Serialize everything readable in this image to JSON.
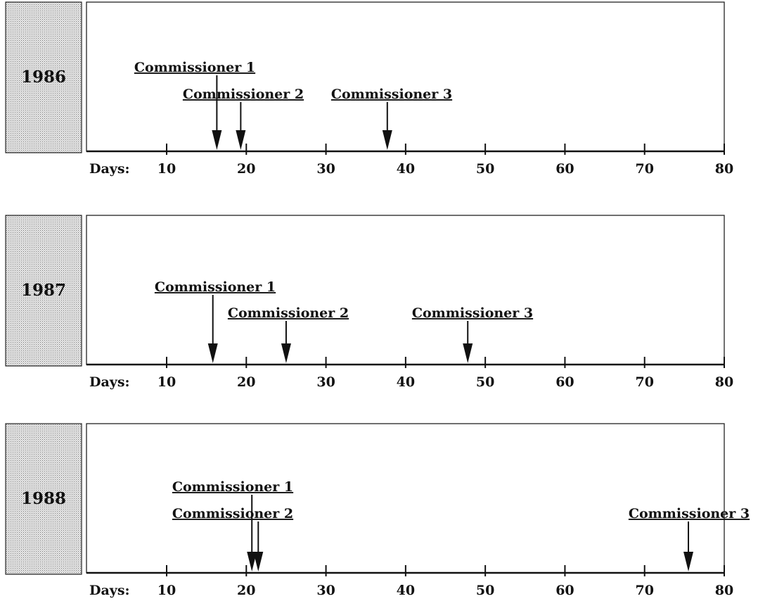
{
  "chart_data": [
    {
      "type": "timeline",
      "year_label": "1986",
      "axis_label": "Days:",
      "xlim": [
        0,
        80
      ],
      "ticks": [
        10,
        20,
        30,
        40,
        50,
        60,
        70,
        80
      ],
      "tick_labels": [
        "10",
        "20",
        "30",
        "40",
        "50",
        "60",
        "70",
        "80"
      ],
      "markers": [
        {
          "label": "Commissioner 1",
          "day": 16.3
        },
        {
          "label": "Commissioner 2",
          "day": 19.3
        },
        {
          "label": "Commissioner 3",
          "day": 37.7
        }
      ]
    },
    {
      "type": "timeline",
      "year_label": "1987",
      "axis_label": "Days:",
      "xlim": [
        0,
        80
      ],
      "ticks": [
        10,
        20,
        30,
        40,
        50,
        60,
        70,
        80
      ],
      "tick_labels": [
        "10",
        "20",
        "30",
        "40",
        "50",
        "60",
        "70",
        "80"
      ],
      "markers": [
        {
          "label": "Commissioner 1",
          "day": 15.8
        },
        {
          "label": "Commissioner 2",
          "day": 25.0
        },
        {
          "label": "Commissioner 3",
          "day": 47.8
        }
      ]
    },
    {
      "type": "timeline",
      "year_label": "1988",
      "axis_label": "Days:",
      "xlim": [
        0,
        80
      ],
      "ticks": [
        10,
        20,
        30,
        40,
        50,
        60,
        70,
        80
      ],
      "tick_labels": [
        "10",
        "20",
        "30",
        "40",
        "50",
        "60",
        "70",
        "80"
      ],
      "markers": [
        {
          "label": "Commissioner 1",
          "day": 20.7
        },
        {
          "label": "Commissioner 2",
          "day": 21.5
        },
        {
          "label": "Commissioner 3",
          "day": 75.5
        }
      ]
    }
  ]
}
